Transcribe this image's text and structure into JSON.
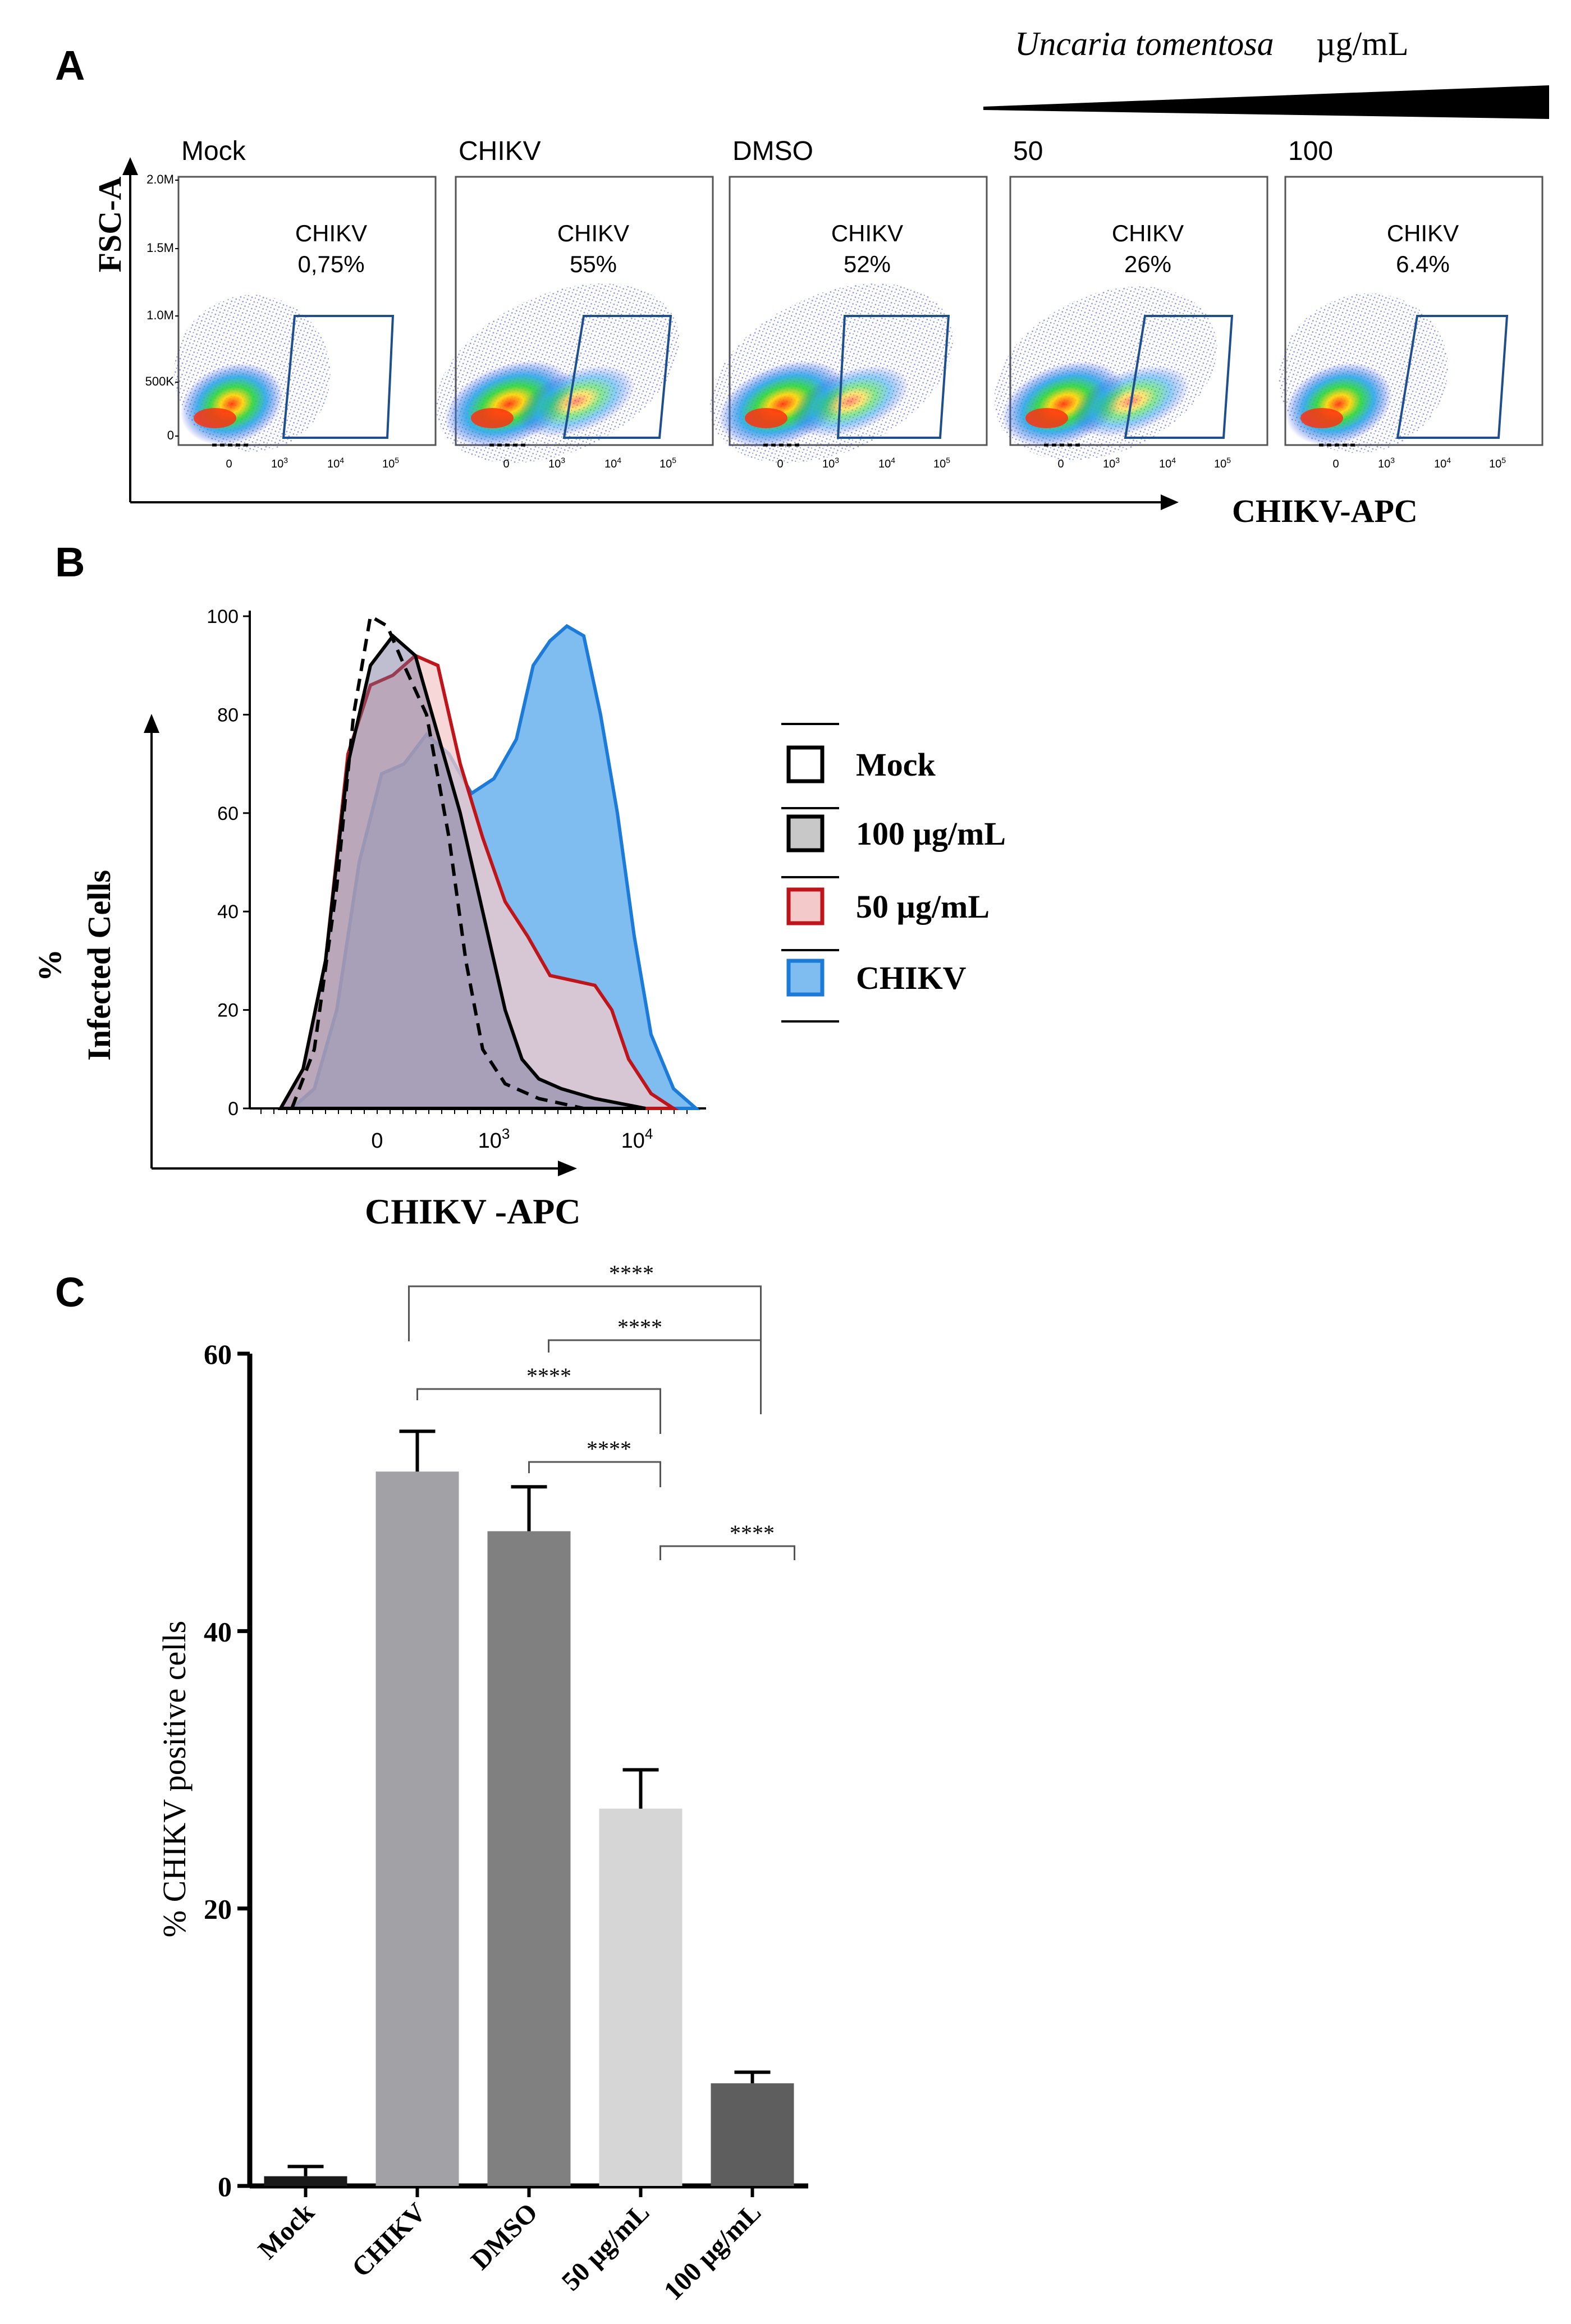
{
  "panels": {
    "a": "A",
    "b": "B",
    "c": "C"
  },
  "panel_a": {
    "treatment_label": "Uncaria tomentosa",
    "treatment_unit": "µg/mL",
    "y_axis_label": "FSC-A",
    "x_axis_label": "CHIKV-APC",
    "y_ticks": [
      "2.0M",
      "1.5M",
      "1.0M",
      "500K",
      "0"
    ],
    "x_ticks": [
      "0",
      "10",
      "10",
      "10"
    ],
    "x_tick_exps": [
      "",
      "3",
      "4",
      "5"
    ],
    "plots": [
      {
        "title": "Mock",
        "gate_label": "CHIKV",
        "gate_value": "0,75%"
      },
      {
        "title": "CHIKV",
        "gate_label": "CHIKV",
        "gate_value": "55%"
      },
      {
        "title": "DMSO",
        "gate_label": "CHIKV",
        "gate_value": "52%"
      },
      {
        "title": "50",
        "gate_label": "CHIKV",
        "gate_value": "26%"
      },
      {
        "title": "100",
        "gate_label": "CHIKV",
        "gate_value": "6.4%"
      }
    ]
  },
  "panel_b": {
    "y_axis_label_line1": "%",
    "y_axis_label_line2": "Infected Cells",
    "x_axis_label": "CHIKV -APC",
    "y_ticks": [
      "100",
      "80",
      "60",
      "40",
      "20",
      "0"
    ],
    "x_ticks": [
      "0",
      "10",
      "10"
    ],
    "x_tick_exps": [
      "",
      "3",
      "4"
    ],
    "legend": [
      {
        "label": "Mock",
        "fill": "#ffffff",
        "stroke": "#000000"
      },
      {
        "label": "100 µg/mL",
        "fill": "#c8c8c8",
        "stroke": "#000000"
      },
      {
        "label": "50 µg/mL",
        "fill": "#f4c9c9",
        "stroke": "#c0141b"
      },
      {
        "label": "CHIKV",
        "fill": "#7fbdf0",
        "stroke": "#1c7bd8"
      }
    ]
  },
  "chart_data": {
    "type": "bar",
    "title": "",
    "xlabel": "",
    "ylabel": "% CHIKV positive cells",
    "ylim": [
      0,
      60
    ],
    "y_ticks": [
      "0",
      "20",
      "40",
      "60"
    ],
    "categories": [
      "Mock",
      "CHIKV",
      "DMSO",
      "50 µg/mL",
      "100 µg/mL"
    ],
    "values": [
      0.7,
      51.5,
      47.2,
      27.2,
      7.4
    ],
    "errors": [
      0.7,
      2.9,
      3.2,
      2.8,
      0.8
    ],
    "bar_colors": [
      "#1a1a1a",
      "#a2a1a6",
      "#808080",
      "#d6d6d6",
      "#5e5e5e"
    ],
    "significance": [
      {
        "from": 1,
        "to": 4,
        "label": "****"
      },
      {
        "from": 2,
        "to": 4,
        "label": "****"
      },
      {
        "from": 1,
        "to": 3,
        "label": "****"
      },
      {
        "from": 2,
        "to": 3,
        "label": "****"
      },
      {
        "from": 3,
        "to": 4,
        "label": "****"
      }
    ]
  }
}
